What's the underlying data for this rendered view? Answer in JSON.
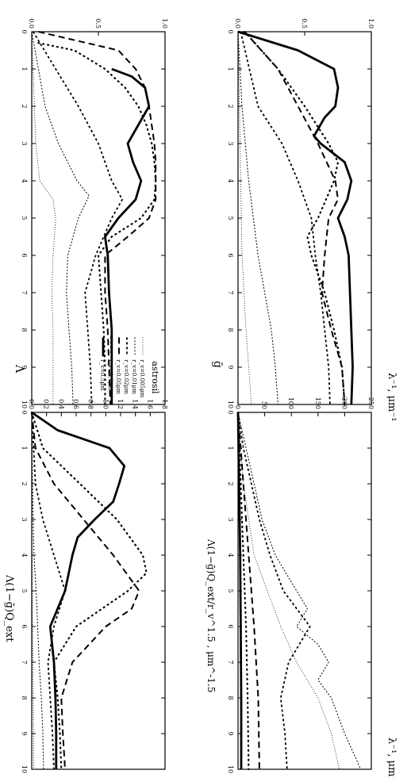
{
  "figure": {
    "x_label": "λ⁻¹, μm⁻¹",
    "x_ticks": [
      "0",
      "1",
      "2",
      "3",
      "4",
      "5",
      "6",
      "7",
      "8",
      "9",
      "10"
    ],
    "legend_title": "astrosil",
    "legend_entries": [
      "r_v=0.005μm",
      "r_v=0.01μm",
      "r_v=0.02μm",
      "r_v=0.05μm",
      "r_v=0.1μm",
      "r_v=0.5μm"
    ],
    "panel_a_ylabel": "Λ",
    "panel_b_ylabel": "ḡ",
    "panel_c_ylabel": "Λ(1−ḡ)Q_ext",
    "panel_d_ylabel": "Λ(1−ḡ)Q_ext/r_v^1.5 , μm^-1.5",
    "ticks_a": [
      "0.0",
      "0.5",
      "1.0"
    ],
    "ticks_b": [
      "0.0",
      "0.5",
      "1.0"
    ],
    "ticks_c": [
      "0.0",
      "0.2",
      "0.4",
      "0.6",
      "0.8",
      "1.0",
      "1.2",
      "1.4",
      "1.6",
      "1.8"
    ],
    "ticks_d": [
      "0",
      "50",
      "100",
      "150",
      "200",
      "250"
    ]
  },
  "chart_data": [
    {
      "type": "line",
      "xlabel": "λ⁻¹, μm⁻¹",
      "ylabel": "Λ",
      "xlim": [
        0,
        10
      ],
      "ylim": [
        0,
        1
      ],
      "series": [
        {
          "name": "r_v=0.005μm",
          "x": [
            0,
            1,
            2,
            3,
            4,
            4.5,
            5,
            6,
            7,
            8,
            9,
            10
          ],
          "y": [
            0,
            0.01,
            0.02,
            0.03,
            0.06,
            0.16,
            0.18,
            0.16,
            0.15,
            0.16,
            0.16,
            0.16
          ]
        },
        {
          "name": "r_v=0.01μm",
          "x": [
            0,
            1,
            2,
            3,
            4,
            4.4,
            5,
            6,
            7,
            8,
            9,
            10
          ],
          "y": [
            0,
            0.05,
            0.1,
            0.2,
            0.34,
            0.43,
            0.35,
            0.27,
            0.26,
            0.28,
            0.3,
            0.31
          ]
        },
        {
          "name": "r_v=0.02μm",
          "x": [
            0,
            1,
            2,
            3,
            4,
            4.5,
            5,
            6,
            7,
            8,
            9,
            10
          ],
          "y": [
            0.01,
            0.18,
            0.35,
            0.5,
            0.6,
            0.68,
            0.6,
            0.48,
            0.4,
            0.42,
            0.44,
            0.45
          ]
        },
        {
          "name": "r_v=0.05μm",
          "x": [
            0,
            0.5,
            1,
            1.5,
            2,
            2.5,
            3,
            3.5,
            4,
            4.5,
            5,
            5.5,
            6,
            7,
            8,
            9,
            10
          ],
          "y": [
            0.05,
            0.65,
            0.78,
            0.85,
            0.88,
            0.9,
            0.92,
            0.93,
            0.93,
            0.93,
            0.88,
            0.72,
            0.55,
            0.55,
            0.57,
            0.58,
            0.59
          ]
        },
        {
          "name": "r_v=0.1μm",
          "x": [
            0.3,
            0.5,
            1,
            1.5,
            2,
            2.5,
            3,
            3.5,
            4,
            4.5,
            5,
            5.5,
            6,
            7,
            8,
            9,
            10
          ],
          "y": [
            0.05,
            0.32,
            0.55,
            0.7,
            0.8,
            0.86,
            0.9,
            0.92,
            0.93,
            0.92,
            0.82,
            0.6,
            0.5,
            0.52,
            0.54,
            0.55,
            0.55
          ]
        },
        {
          "name": "r_v=0.5μm",
          "x": [
            1,
            1.2,
            1.5,
            2,
            2.5,
            3,
            3.5,
            4,
            4.5,
            5,
            5.5,
            6,
            7,
            8,
            9,
            10
          ],
          "y": [
            0.6,
            0.75,
            0.85,
            0.88,
            0.8,
            0.72,
            0.76,
            0.82,
            0.78,
            0.65,
            0.55,
            0.57,
            0.58,
            0.6,
            0.6,
            0.6
          ]
        }
      ]
    },
    {
      "type": "line",
      "xlabel": "λ⁻¹, μm⁻¹",
      "ylabel": "ḡ",
      "xlim": [
        0,
        10
      ],
      "ylim": [
        0,
        1
      ],
      "series": [
        {
          "name": "r_v=0.005μm",
          "x": [
            0,
            2,
            4,
            6,
            8,
            10
          ],
          "y": [
            0,
            0.01,
            0.02,
            0.03,
            0.06,
            0.1
          ]
        },
        {
          "name": "r_v=0.01μm",
          "x": [
            0,
            2,
            4,
            6,
            7,
            8,
            9,
            10
          ],
          "y": [
            0,
            0.03,
            0.08,
            0.15,
            0.2,
            0.25,
            0.28,
            0.3
          ]
        },
        {
          "name": "r_v=0.02μm",
          "x": [
            0,
            2,
            3,
            4,
            5,
            6,
            7,
            8,
            9,
            10
          ],
          "y": [
            0.02,
            0.15,
            0.33,
            0.45,
            0.55,
            0.58,
            0.62,
            0.65,
            0.68,
            0.69
          ]
        },
        {
          "name": "r_v=0.05μm",
          "x": [
            0,
            1,
            2,
            3,
            4,
            4.5,
            5,
            6,
            7,
            8,
            9,
            10
          ],
          "y": [
            0.05,
            0.3,
            0.45,
            0.6,
            0.73,
            0.75,
            0.68,
            0.65,
            0.63,
            0.7,
            0.78,
            0.8
          ]
        },
        {
          "name": "r_v=0.1μm",
          "x": [
            0,
            1,
            2,
            3,
            3.5,
            4,
            5,
            5.5,
            6,
            7,
            8,
            9,
            10
          ],
          "y": [
            0.05,
            0.3,
            0.5,
            0.68,
            0.75,
            0.72,
            0.6,
            0.52,
            0.55,
            0.65,
            0.72,
            0.78,
            0.8
          ]
        },
        {
          "name": "r_v=0.5μm",
          "x": [
            0,
            0.5,
            1,
            1.5,
            2,
            2.3,
            2.8,
            3,
            3.5,
            4,
            4.5,
            5,
            5.5,
            6,
            7,
            8,
            9,
            10
          ],
          "y": [
            0,
            0.45,
            0.72,
            0.75,
            0.73,
            0.65,
            0.57,
            0.62,
            0.8,
            0.85,
            0.82,
            0.75,
            0.8,
            0.83,
            0.84,
            0.85,
            0.86,
            0.85
          ]
        }
      ]
    },
    {
      "type": "line",
      "xlabel": "λ⁻¹, μm⁻¹",
      "ylabel": "Λ(1−ḡ)Q_ext",
      "xlim": [
        0,
        10
      ],
      "ylim": [
        0,
        1.8
      ],
      "series": [
        {
          "name": "r_v=0.005μm",
          "x": [
            0,
            2,
            4,
            6,
            8,
            10
          ],
          "y": [
            0,
            0.002,
            0.005,
            0.01,
            0.02,
            0.03
          ]
        },
        {
          "name": "r_v=0.01μm",
          "x": [
            0,
            2,
            4,
            5,
            6,
            7,
            8,
            9,
            10
          ],
          "y": [
            0,
            0.01,
            0.03,
            0.06,
            0.08,
            0.1,
            0.13,
            0.15,
            0.16
          ]
        },
        {
          "name": "r_v=0.02μm",
          "x": [
            0,
            2,
            3,
            4,
            5,
            6,
            7,
            8,
            9,
            10
          ],
          "y": [
            0,
            0.05,
            0.15,
            0.3,
            0.45,
            0.3,
            0.22,
            0.25,
            0.28,
            0.3
          ]
        },
        {
          "name": "r_v=0.05μm",
          "x": [
            0,
            1,
            2,
            3,
            4,
            5,
            5.5,
            6,
            7,
            8,
            9,
            10
          ],
          "y": [
            0,
            0.05,
            0.3,
            0.7,
            1.1,
            1.45,
            1.35,
            1.0,
            0.55,
            0.4,
            0.42,
            0.45
          ]
        },
        {
          "name": "r_v=0.1μm",
          "x": [
            0,
            1,
            2,
            3,
            4,
            4.5,
            5,
            6,
            7,
            8,
            9,
            10
          ],
          "y": [
            0,
            0.15,
            0.65,
            1.15,
            1.5,
            1.55,
            1.3,
            0.6,
            0.3,
            0.35,
            0.38,
            0.4
          ]
        },
        {
          "name": "r_v=0.5μm",
          "x": [
            0,
            0.5,
            1,
            1.5,
            2,
            2.5,
            3,
            3.5,
            4,
            5,
            6,
            7,
            8,
            9,
            10
          ],
          "y": [
            0,
            0.35,
            1.05,
            1.25,
            1.18,
            1.1,
            0.85,
            0.62,
            0.55,
            0.45,
            0.25,
            0.3,
            0.32,
            0.33,
            0.33
          ]
        }
      ]
    },
    {
      "type": "line",
      "xlabel": "λ⁻¹, μm⁻¹",
      "ylabel": "Λ(1−ḡ)Q_ext/r_v^1.5 , μm^-1.5",
      "xlim": [
        0,
        10
      ],
      "ylim": [
        0,
        250
      ],
      "series": [
        {
          "name": "r_v=0.005μm",
          "x": [
            0,
            2,
            4,
            5,
            6,
            7,
            8,
            9,
            10
          ],
          "y": [
            0,
            10,
            30,
            55,
            80,
            110,
            150,
            175,
            190
          ]
        },
        {
          "name": "r_v=0.01μm",
          "x": [
            0,
            1,
            2,
            3,
            4,
            5,
            5.5,
            6,
            6.5,
            7,
            7.5,
            8,
            9,
            10
          ],
          "y": [
            0,
            15,
            30,
            45,
            70,
            110,
            130,
            110,
            150,
            170,
            150,
            175,
            200,
            230
          ]
        },
        {
          "name": "r_v=0.02μm",
          "x": [
            0,
            1,
            2,
            3,
            4,
            5,
            6,
            7,
            8,
            9,
            10
          ],
          "y": [
            0,
            10,
            25,
            40,
            60,
            85,
            135,
            95,
            80,
            88,
            92
          ]
        },
        {
          "name": "r_v=0.05μm",
          "x": [
            0,
            2,
            4,
            6,
            8,
            10
          ],
          "y": [
            0,
            10,
            20,
            30,
            38,
            40
          ]
        },
        {
          "name": "r_v=0.1μm",
          "x": [
            0,
            2,
            4,
            6,
            8,
            10
          ],
          "y": [
            0,
            5,
            10,
            15,
            18,
            20
          ]
        },
        {
          "name": "r_v=0.5μm",
          "x": [
            0,
            2,
            4,
            6,
            8,
            10
          ],
          "y": [
            0,
            2,
            4,
            5,
            6,
            6
          ]
        }
      ]
    }
  ]
}
